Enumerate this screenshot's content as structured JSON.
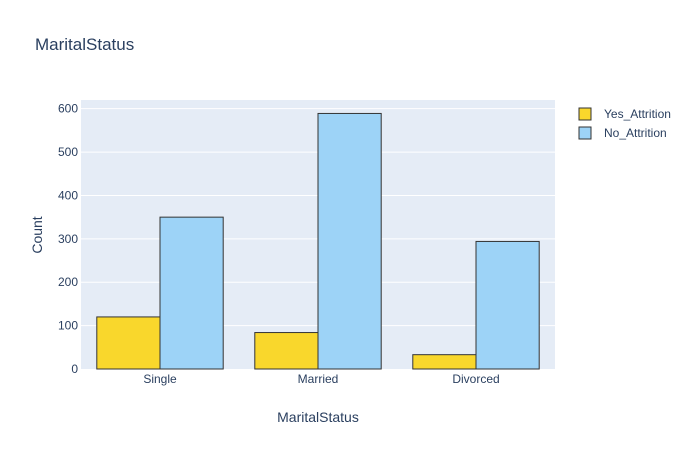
{
  "chart_data": {
    "type": "bar",
    "title": "MaritalStatus",
    "xlabel": "MaritalStatus",
    "ylabel": "Count",
    "categories": [
      "Single",
      "Married",
      "Divorced"
    ],
    "series": [
      {
        "name": "Yes_Attrition",
        "values": [
          120,
          84,
          33
        ],
        "color": "#f9d72c"
      },
      {
        "name": "No_Attrition",
        "values": [
          350,
          589,
          294
        ],
        "color": "#9dd3f7"
      }
    ],
    "ylim": [
      0,
      620
    ],
    "yticks": [
      0,
      100,
      200,
      300,
      400,
      500,
      600
    ],
    "grid": true,
    "legend_position": "top-right",
    "plot_background": "#e5ecf6",
    "bar_outline": "#333333"
  }
}
